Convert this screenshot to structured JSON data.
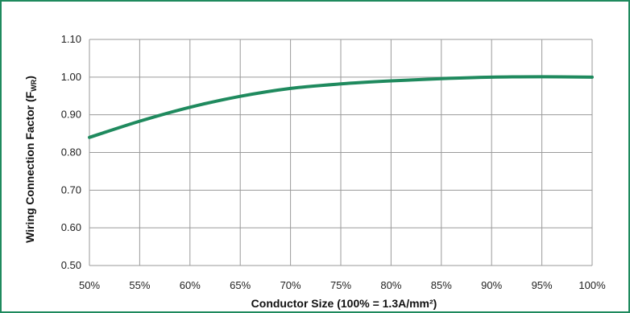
{
  "chart_data": {
    "type": "line",
    "xlabel": "Conductor Size (100% = 1.3A/mm²)",
    "ylabel_main": "Wiring Connection Factor (F",
    "ylabel_sub": "WR",
    "ylabel_end": ")",
    "xlim": [
      50,
      100
    ],
    "ylim": [
      0.5,
      1.1
    ],
    "x_ticks": [
      50,
      55,
      60,
      65,
      70,
      75,
      80,
      85,
      90,
      95,
      100
    ],
    "x_tick_labels": [
      "50%",
      "55%",
      "60%",
      "65%",
      "70%",
      "75%",
      "80%",
      "85%",
      "90%",
      "95%",
      "100%"
    ],
    "y_ticks": [
      0.5,
      0.6,
      0.7,
      0.8,
      0.9,
      1.0,
      1.1
    ],
    "y_tick_labels": [
      "0.50",
      "0.60",
      "0.70",
      "0.80",
      "0.90",
      "1.00",
      "1.10"
    ],
    "grid": true,
    "series": [
      {
        "color": "#1f8a5e",
        "x": [
          50,
          55,
          60,
          65,
          70,
          75,
          80,
          85,
          90,
          95,
          100
        ],
        "y": [
          0.84,
          0.883,
          0.92,
          0.949,
          0.97,
          0.982,
          0.99,
          0.996,
          1.0,
          1.001,
          1.0
        ]
      }
    ]
  },
  "colors": {
    "frame_border": "#1f8a5e",
    "grid": "#9a9a9a"
  }
}
